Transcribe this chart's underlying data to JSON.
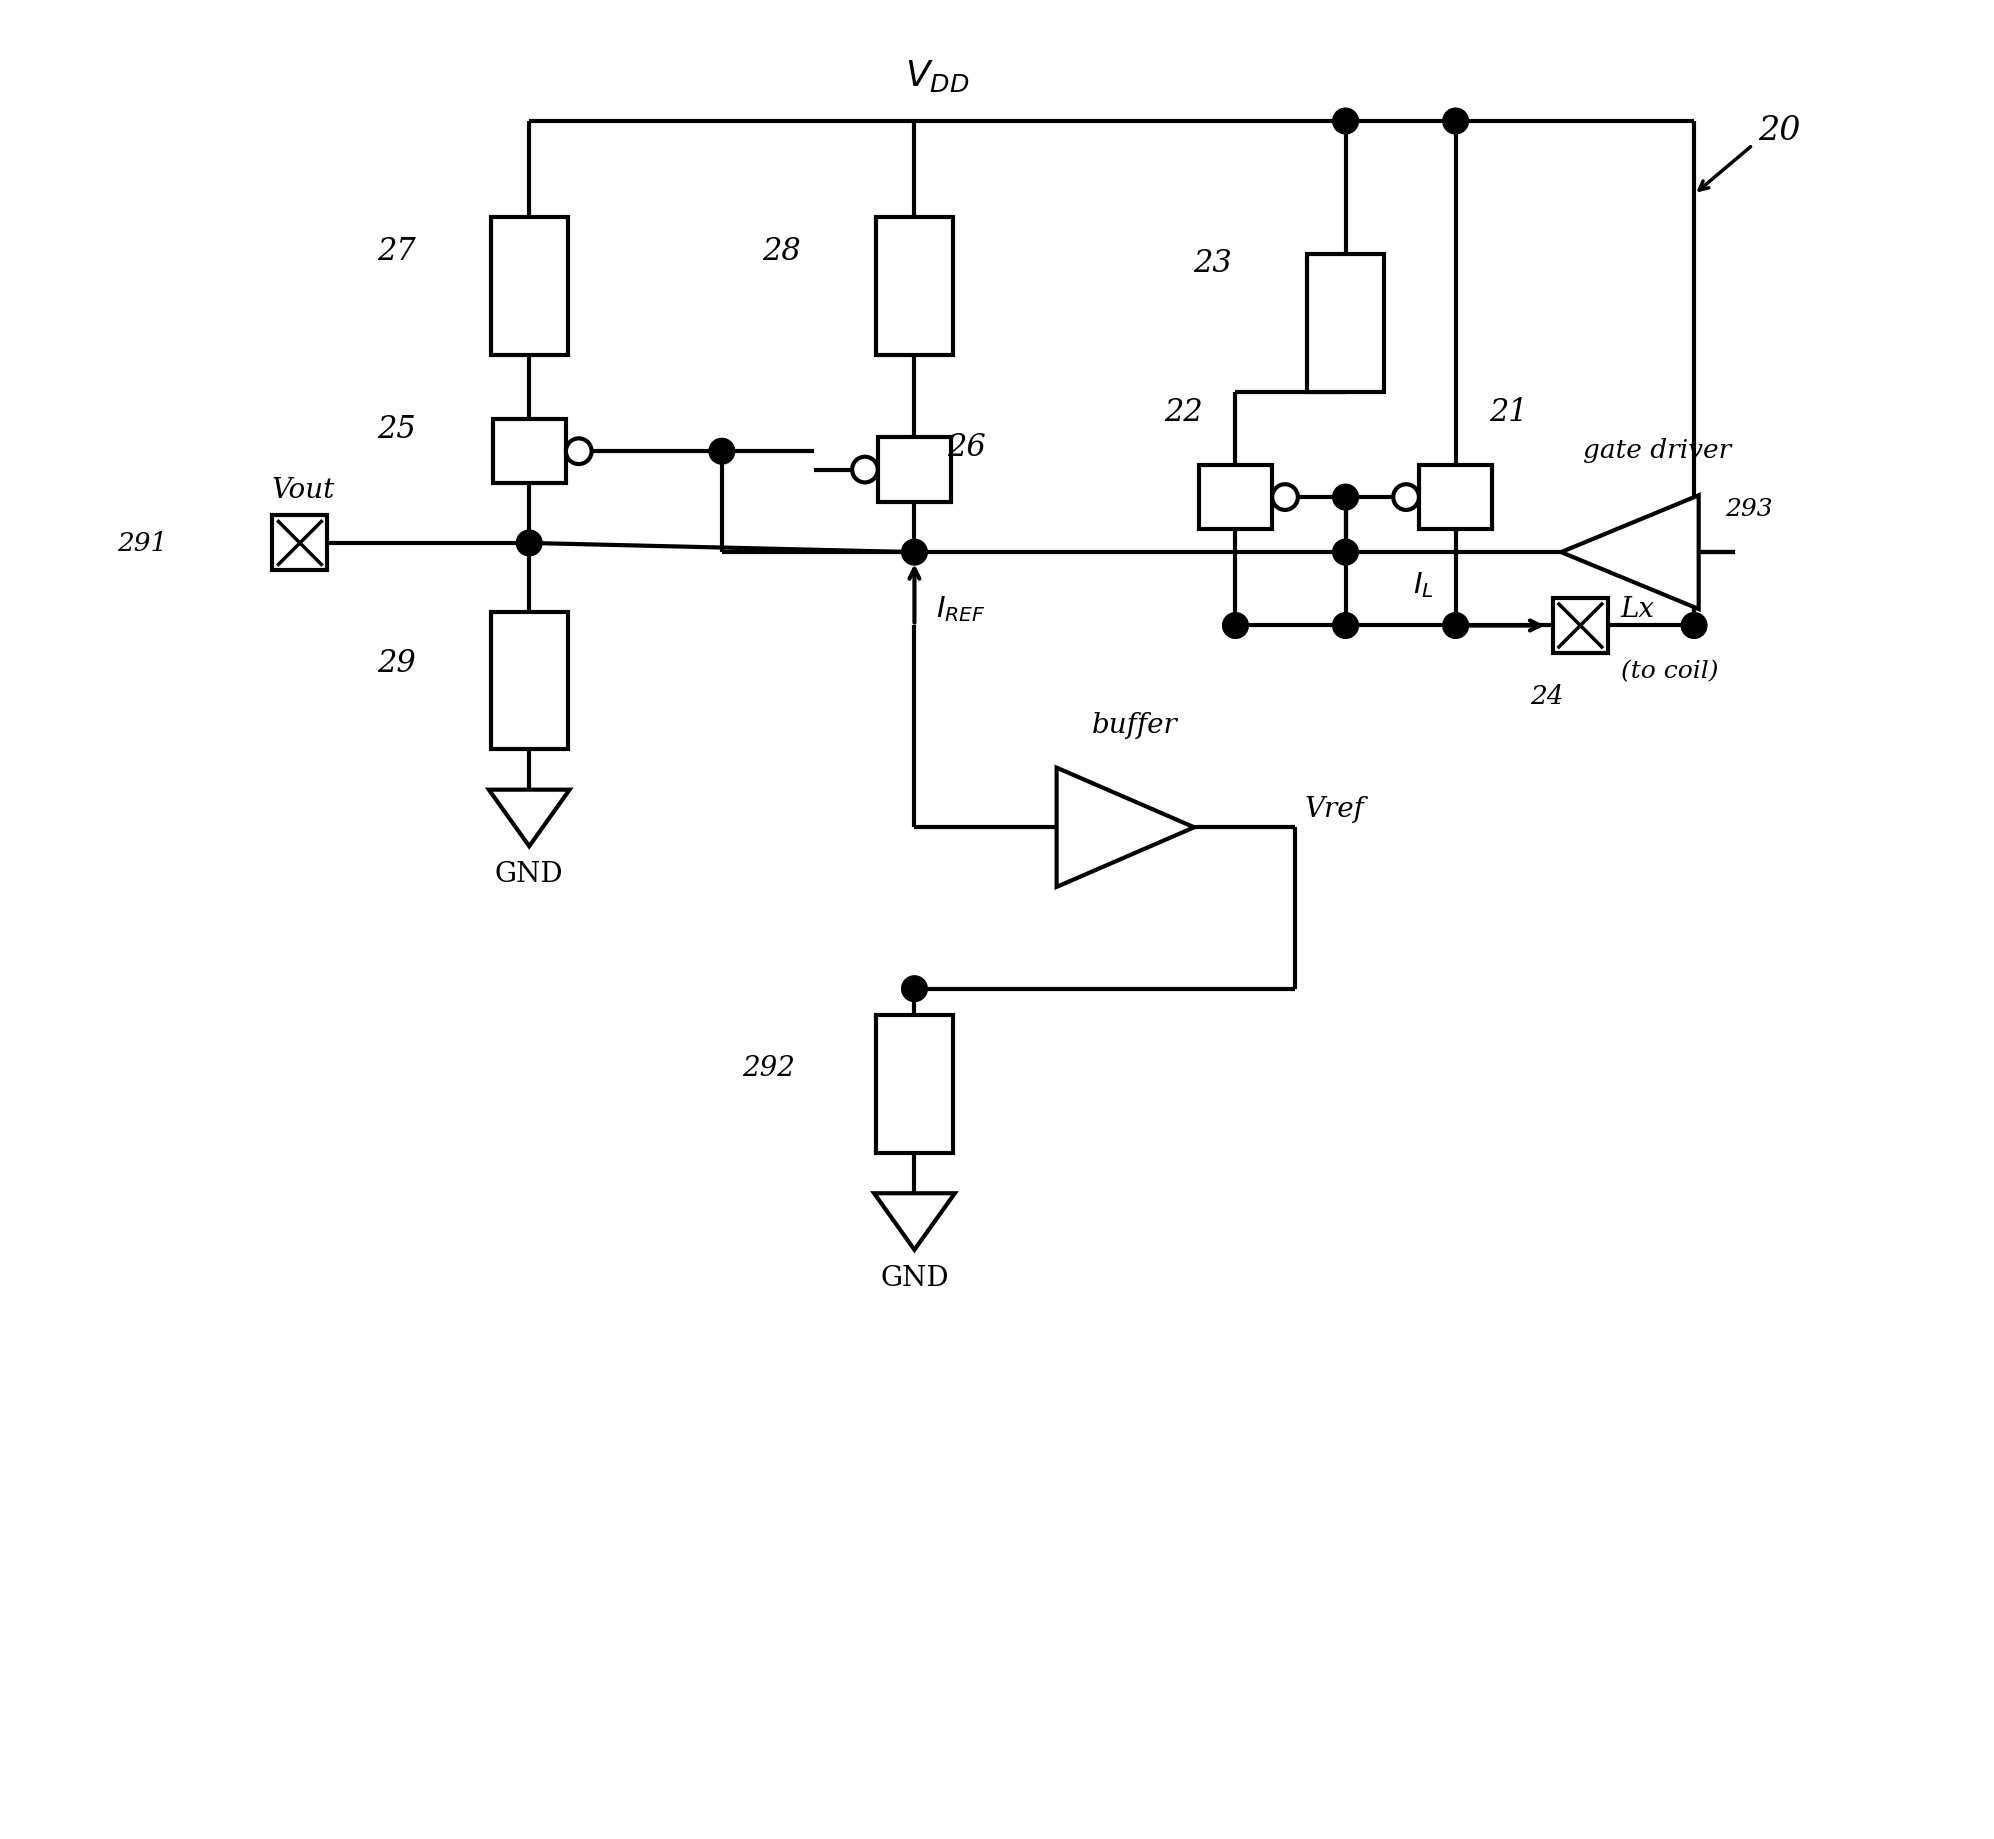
{
  "bg": "#ffffff",
  "lc": "#000000",
  "lw": 3.0,
  "fig_w": 19.94,
  "fig_h": 18.4,
  "xlim": [
    0,
    10
  ],
  "ylim": [
    0,
    10
  ]
}
